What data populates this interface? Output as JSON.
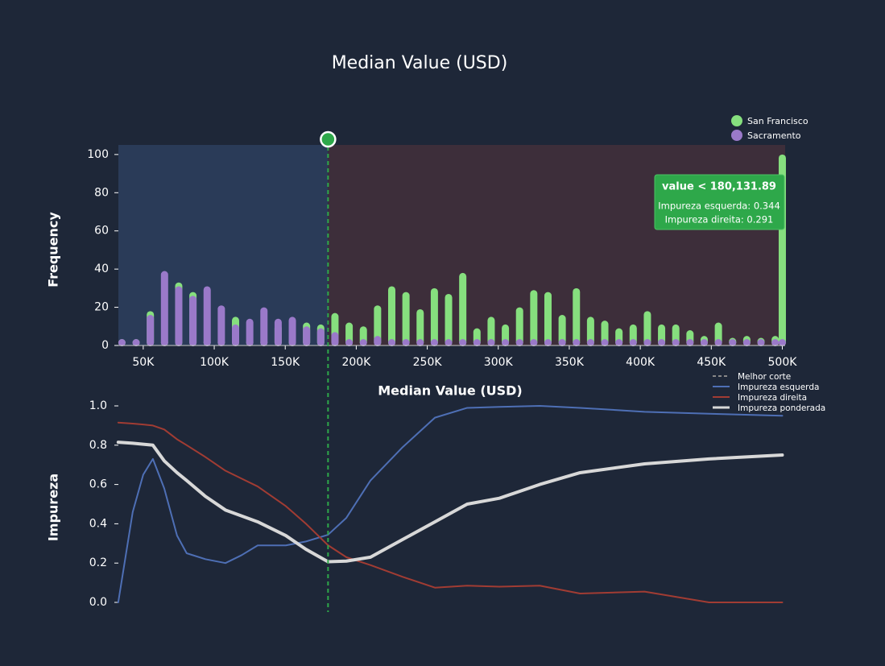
{
  "chart_data": [
    {
      "type": "bar",
      "title": "Median Value (USD)",
      "x_label": "Median Value (USD)",
      "y_label": "Frequency",
      "x": [
        35000,
        45000,
        55000,
        65000,
        75000,
        85000,
        95000,
        105000,
        115000,
        125000,
        135000,
        145000,
        155000,
        165000,
        175000,
        185000,
        195000,
        205000,
        215000,
        225000,
        235000,
        245000,
        255000,
        265000,
        275000,
        285000,
        295000,
        305000,
        315000,
        325000,
        335000,
        345000,
        355000,
        365000,
        375000,
        385000,
        395000,
        405000,
        415000,
        425000,
        435000,
        445000,
        455000,
        465000,
        475000,
        485000,
        495000,
        500000
      ],
      "series": [
        {
          "name": "San Francisco",
          "color": "#86df7e",
          "values": [
            1,
            0,
            18,
            0,
            33,
            28,
            0,
            0,
            15,
            0,
            0,
            11,
            0,
            12,
            11,
            17,
            12,
            10,
            21,
            31,
            28,
            19,
            30,
            27,
            38,
            9,
            15,
            11,
            20,
            29,
            28,
            16,
            30,
            15,
            13,
            9,
            11,
            18,
            11,
            11,
            8,
            5,
            12,
            4,
            5,
            4,
            5,
            100
          ]
        },
        {
          "name": "Sacramento",
          "color": "#9a79c9",
          "values": [
            0,
            1,
            16,
            39,
            31,
            26,
            31,
            21,
            11,
            14,
            20,
            14,
            15,
            10,
            9,
            7,
            3,
            3,
            5,
            3,
            3,
            0,
            0,
            0,
            0,
            0,
            0,
            0,
            0,
            0,
            0,
            0,
            0,
            0,
            0,
            0,
            0,
            0,
            0,
            0,
            0,
            0,
            0,
            0,
            0,
            0,
            0,
            0
          ]
        }
      ],
      "xlim": [
        32500,
        502000
      ],
      "xticks": [
        {
          "value": 50000,
          "label": "50K"
        },
        {
          "value": 100000,
          "label": "100K"
        },
        {
          "value": 150000,
          "label": "150K"
        },
        {
          "value": 200000,
          "label": "200K"
        },
        {
          "value": 250000,
          "label": "250K"
        },
        {
          "value": 300000,
          "label": "300K"
        },
        {
          "value": 350000,
          "label": "350K"
        },
        {
          "value": 400000,
          "label": "400K"
        },
        {
          "value": 450000,
          "label": "450K"
        },
        {
          "value": 500000,
          "label": "500K"
        }
      ],
      "ylim": [
        0,
        105
      ],
      "yticks": [
        0,
        20,
        40,
        60,
        80,
        100
      ],
      "legend": "top-right",
      "split": 180131.89,
      "tooltip": {
        "title": "value < 180,131.89",
        "lines": [
          "Impureza esquerda: 0.344",
          "Impureza direita: 0.291"
        ]
      }
    },
    {
      "type": "line",
      "y_label": "Impureza",
      "split_name": "Melhor corte",
      "x": [
        32400,
        42600,
        50000,
        56800,
        64800,
        73800,
        80600,
        93700,
        107900,
        119200,
        130600,
        150400,
        164600,
        180100,
        193000,
        210000,
        232700,
        255400,
        278100,
        300800,
        329200,
        357600,
        403000,
        448400,
        500000
      ],
      "series": [
        {
          "name": "Impureza esquerda",
          "color": "#4e6fb5",
          "values": [
            0,
            0.46,
            0.65,
            0.73,
            0.58,
            0.34,
            0.25,
            0.22,
            0.2,
            0.24,
            0.29,
            0.29,
            0.31,
            0.344,
            0.43,
            0.62,
            0.79,
            0.94,
            0.99,
            0.995,
            1,
            0.99,
            0.97,
            0.96,
            0.95
          ]
        },
        {
          "name": "Impureza direita",
          "color": "#a13c33",
          "values": [
            0.915,
            0.91,
            0.905,
            0.9,
            0.88,
            0.83,
            0.8,
            0.74,
            0.67,
            0.63,
            0.59,
            0.49,
            0.4,
            0.291,
            0.23,
            0.19,
            0.13,
            0.075,
            0.085,
            0.08,
            0.085,
            0.045,
            0.055,
            0,
            0
          ]
        },
        {
          "name": "Impureza ponderada",
          "color": "#d8d8d8",
          "values": [
            0.815,
            0.81,
            0.805,
            0.8,
            0.72,
            0.66,
            0.62,
            0.54,
            0.47,
            0.44,
            0.41,
            0.34,
            0.27,
            0.207,
            0.21,
            0.23,
            0.32,
            0.41,
            0.5,
            0.53,
            0.6,
            0.66,
            0.705,
            0.73,
            0.75
          ]
        }
      ],
      "xlim": [
        32500,
        502000
      ],
      "ylim": [
        0,
        1
      ],
      "yticks": [
        {
          "value": 0,
          "label": "0.0"
        },
        0.2,
        0.4,
        0.6,
        0.8,
        {
          "value": 1,
          "label": "1.0"
        }
      ]
    }
  ]
}
